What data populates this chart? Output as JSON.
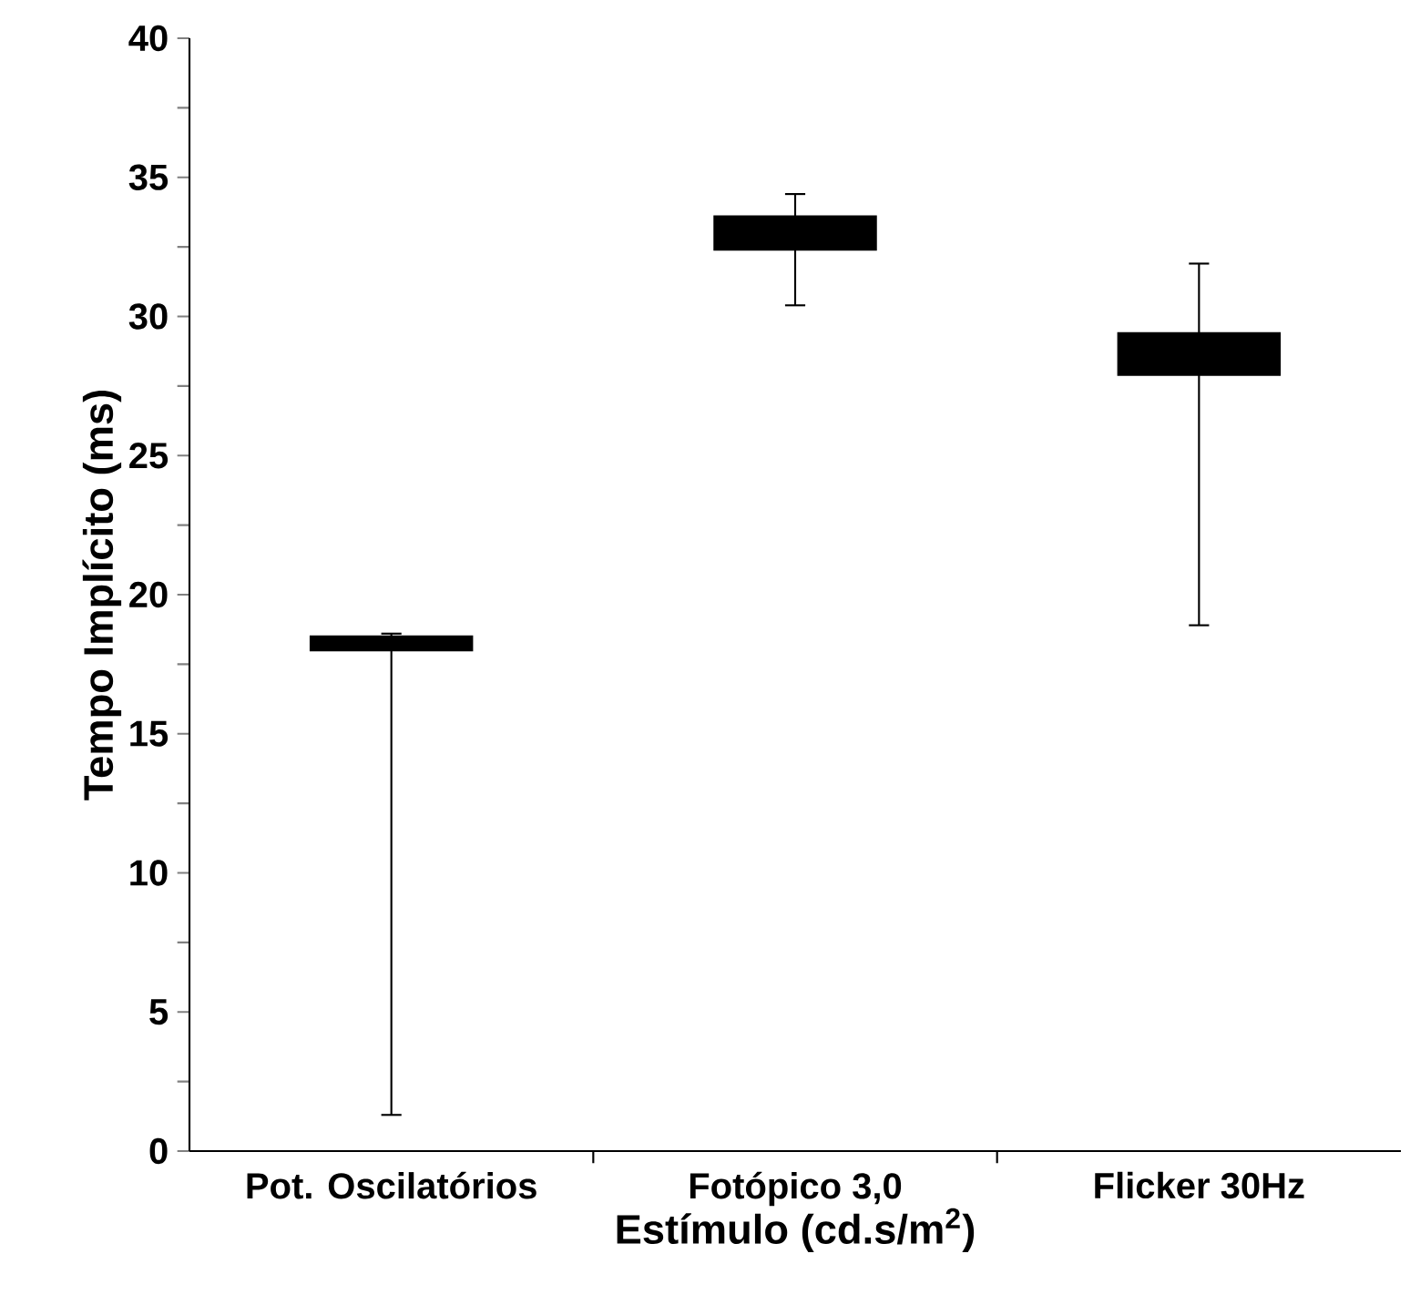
{
  "chart_data": {
    "type": "box",
    "xlabel": "Estímulo (cd.s/m$^{2}$)",
    "ylabel": "Tempo Implícito (ms)",
    "categories": [
      "Pot. Oscilatórios",
      "Fotópico 3,0",
      "Flicker 30Hz"
    ],
    "color": "#000000",
    "boxes": [
      {
        "low": 1.3,
        "q1": 18.0,
        "median": 18.3,
        "q3": 18.5,
        "high": 18.6
      },
      {
        "low": 30.4,
        "q1": 32.4,
        "median": 33.0,
        "q3": 33.6,
        "high": 34.4
      },
      {
        "low": 18.9,
        "q1": 27.9,
        "median": 28.6,
        "q3": 29.4,
        "high": 31.9
      }
    ],
    "ylim": [
      0,
      40
    ],
    "yticks": [
      0,
      5,
      10,
      15,
      20,
      25,
      30,
      35,
      40
    ]
  }
}
